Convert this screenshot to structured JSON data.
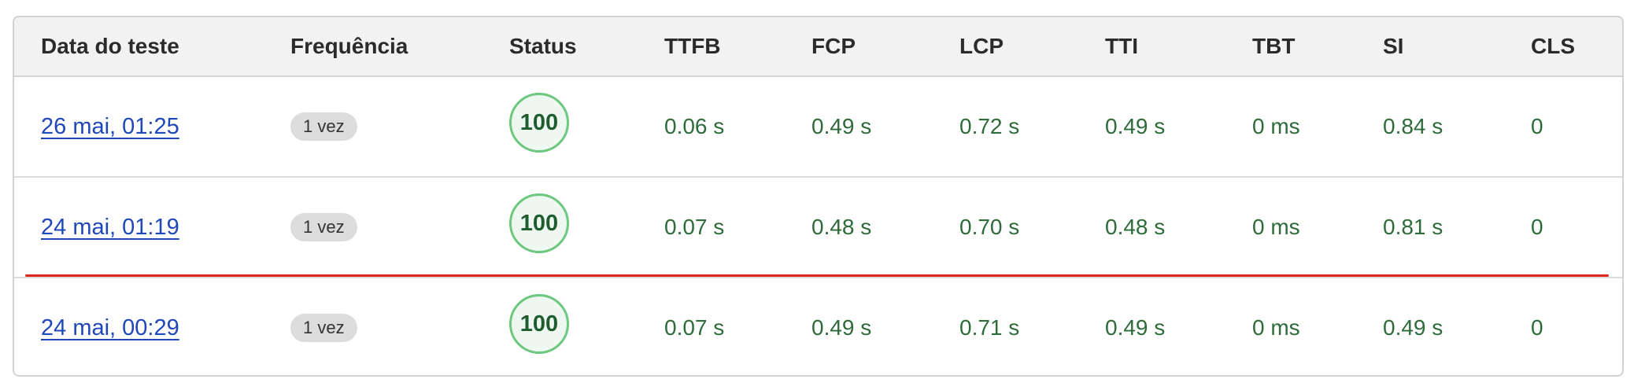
{
  "table": {
    "headers": {
      "date": "Data do teste",
      "frequency": "Frequência",
      "status": "Status",
      "ttfb": "TTFB",
      "fcp": "FCP",
      "lcp": "LCP",
      "tti": "TTI",
      "tbt": "TBT",
      "si": "SI",
      "cls": "CLS"
    },
    "rows": [
      {
        "date": "26 mai, 01:25",
        "frequency": "1 vez",
        "status": "100",
        "ttfb": "0.06 s",
        "fcp": "0.49 s",
        "lcp": "0.72 s",
        "tti": "0.49 s",
        "tbt": "0 ms",
        "si": "0.84 s",
        "cls": "0"
      },
      {
        "date": "24 mai, 01:19",
        "frequency": "1 vez",
        "status": "100",
        "ttfb": "0.07 s",
        "fcp": "0.48 s",
        "lcp": "0.70 s",
        "tti": "0.48 s",
        "tbt": "0 ms",
        "si": "0.81 s",
        "cls": "0"
      },
      {
        "date": "24 mai, 00:29",
        "frequency": "1 vez",
        "status": "100",
        "ttfb": "0.07 s",
        "fcp": "0.49 s",
        "lcp": "0.71 s",
        "tti": "0.49 s",
        "tbt": "0 ms",
        "si": "0.49 s",
        "cls": "0"
      }
    ]
  },
  "colors": {
    "link": "#1f47b8",
    "metric_good": "#2e6b3a",
    "score_ring": "#6cc77f",
    "annotation_line": "#e0281a",
    "header_bg": "#f2f2f2"
  }
}
